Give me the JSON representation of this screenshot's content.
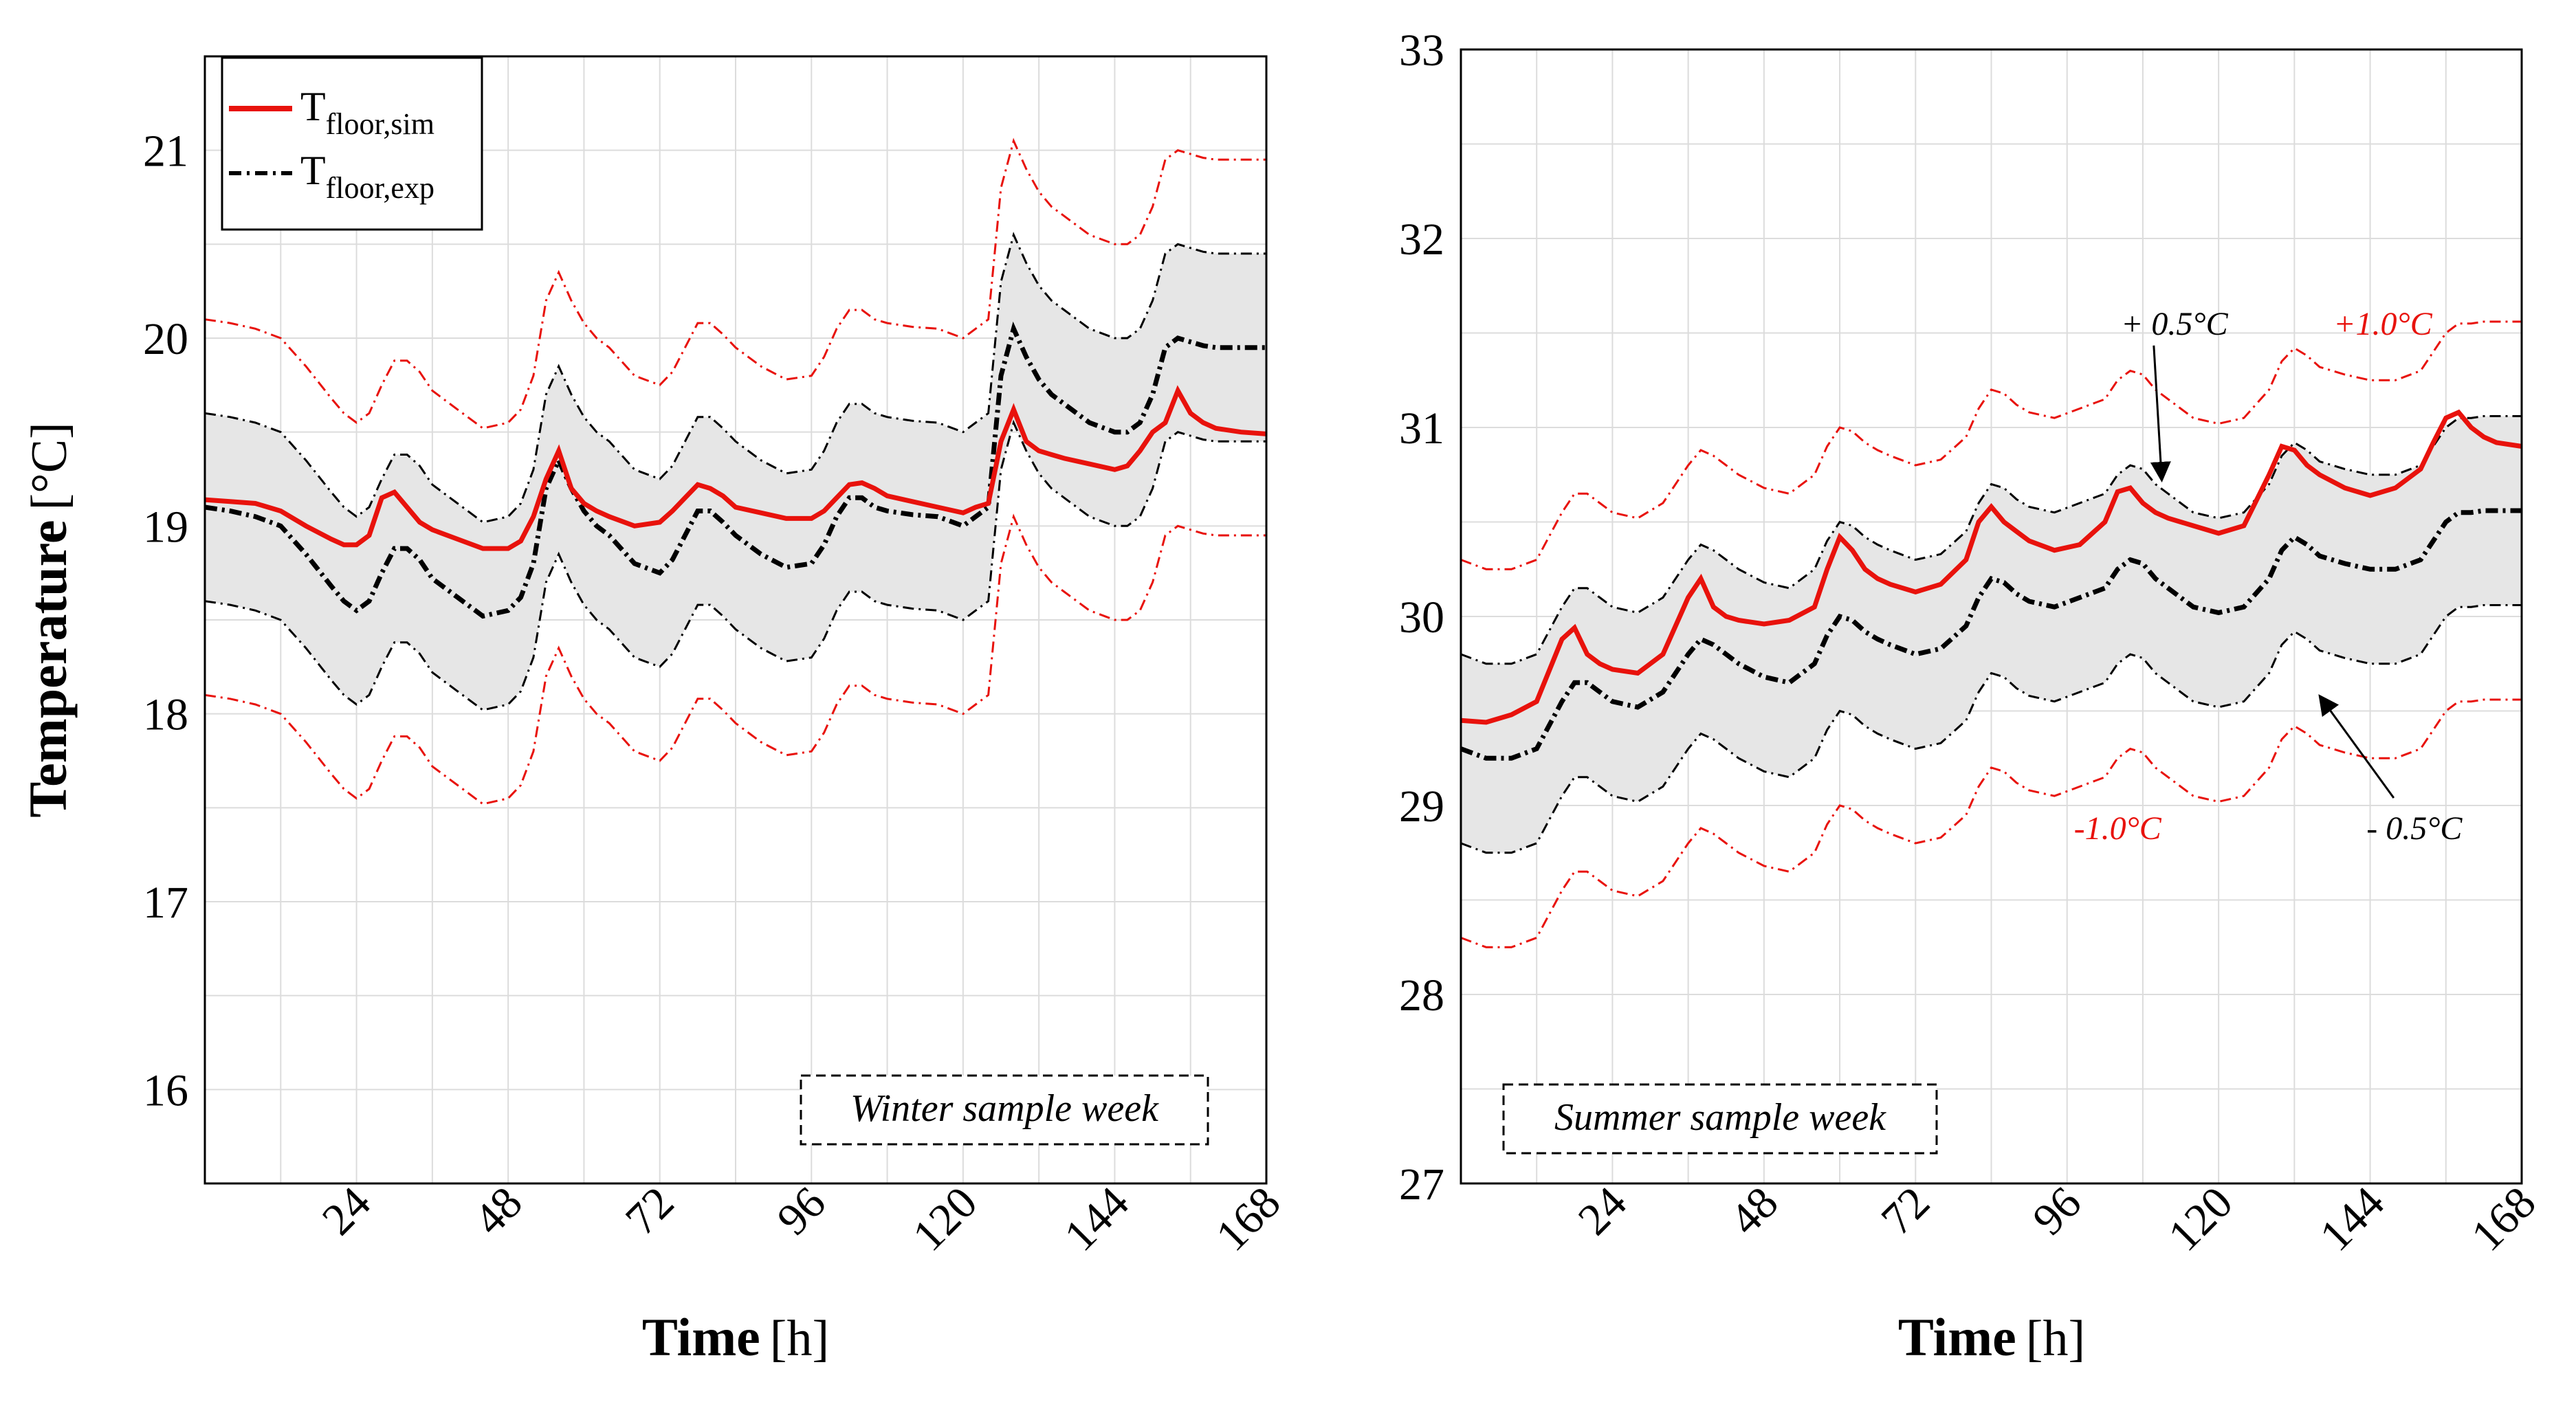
{
  "colors": {
    "sim": "#e8120c",
    "exp": "#000000",
    "band_fill": "#e6e6e6",
    "grid": "#dcdcdc"
  },
  "chart_data": [
    {
      "type": "line",
      "panel": "left",
      "box_label": "Winter sample week",
      "xlabel_main": "Time",
      "xlabel_unit": "[h]",
      "ylabel_main": "Temperature",
      "ylabel_unit": "[°C]",
      "xlim": [
        0,
        168
      ],
      "ylim": [
        15.5,
        21.5
      ],
      "xticks": [
        24,
        48,
        72,
        96,
        120,
        144,
        168
      ],
      "yticks": [
        16,
        17,
        18,
        19,
        20,
        21
      ],
      "grid": true,
      "legend": {
        "position": "top-left",
        "entries": [
          {
            "main": "T",
            "sub": "floor,sim",
            "style": "solid",
            "color": "#e8120c"
          },
          {
            "main": "T",
            "sub": "floor,exp",
            "style": "dash-dot",
            "color": "#000000"
          }
        ]
      },
      "x": [
        0,
        4,
        8,
        12,
        16,
        20,
        22,
        24,
        26,
        28,
        30,
        32,
        34,
        36,
        40,
        44,
        48,
        50,
        52,
        54,
        56,
        58,
        60,
        62,
        64,
        68,
        72,
        74,
        76,
        78,
        80,
        82,
        84,
        88,
        92,
        96,
        98,
        100,
        102,
        104,
        106,
        108,
        112,
        116,
        120,
        122,
        124,
        126,
        128,
        130,
        132,
        134,
        136,
        140,
        144,
        146,
        148,
        150,
        152,
        154,
        156,
        158,
        160,
        164,
        168
      ],
      "series": [
        {
          "name": "T_floor,sim",
          "role": "sim",
          "values": [
            19.14,
            19.13,
            19.12,
            19.08,
            19.0,
            18.93,
            18.9,
            18.9,
            18.95,
            19.15,
            19.18,
            19.1,
            19.02,
            18.98,
            18.93,
            18.88,
            18.88,
            18.92,
            19.05,
            19.25,
            19.4,
            19.2,
            19.12,
            19.08,
            19.05,
            19.0,
            19.02,
            19.08,
            19.15,
            19.22,
            19.2,
            19.16,
            19.1,
            19.07,
            19.04,
            19.04,
            19.08,
            19.15,
            19.22,
            19.23,
            19.2,
            19.16,
            19.13,
            19.1,
            19.07,
            19.1,
            19.12,
            19.45,
            19.62,
            19.45,
            19.4,
            19.38,
            19.36,
            19.33,
            19.3,
            19.32,
            19.4,
            19.5,
            19.55,
            19.72,
            19.6,
            19.55,
            19.52,
            19.5,
            19.49
          ]
        },
        {
          "name": "T_floor,exp",
          "role": "exp",
          "values": [
            19.1,
            19.08,
            19.05,
            19.0,
            18.85,
            18.68,
            18.6,
            18.55,
            18.6,
            18.75,
            18.88,
            18.88,
            18.82,
            18.72,
            18.62,
            18.52,
            18.55,
            18.62,
            18.8,
            19.2,
            19.35,
            19.2,
            19.08,
            19.0,
            18.95,
            18.8,
            18.75,
            18.82,
            18.95,
            19.08,
            19.08,
            19.02,
            18.95,
            18.85,
            18.78,
            18.8,
            18.9,
            19.05,
            19.15,
            19.15,
            19.1,
            19.08,
            19.06,
            19.05,
            19.0,
            19.05,
            19.1,
            19.8,
            20.05,
            19.9,
            19.78,
            19.7,
            19.65,
            19.55,
            19.5,
            19.5,
            19.55,
            19.7,
            19.95,
            20.0,
            19.98,
            19.96,
            19.95,
            19.95,
            19.95
          ]
        }
      ],
      "bands": [
        {
          "offset": 0.5,
          "color": "#000000",
          "filled": true
        },
        {
          "offset": 1.0,
          "color": "#e8120c",
          "filled": false
        }
      ]
    },
    {
      "type": "line",
      "panel": "right",
      "box_label": "Summer sample week",
      "xlabel_main": "Time",
      "xlabel_unit": "[h]",
      "xlim": [
        0,
        168
      ],
      "ylim": [
        27,
        33
      ],
      "xticks": [
        24,
        48,
        72,
        96,
        120,
        144,
        168
      ],
      "yticks": [
        27,
        28,
        29,
        30,
        31,
        32,
        33
      ],
      "grid": true,
      "annotations": [
        {
          "text": "+ 0.5°C",
          "color": "#000000",
          "x": 113,
          "y": 31.55,
          "arrow_to": [
            111,
            30.72
          ]
        },
        {
          "text": "+1.0°C",
          "color": "#e8120c",
          "x": 146,
          "y": 31.55
        },
        {
          "text": "-1.0°C",
          "color": "#e8120c",
          "x": 104,
          "y": 28.88
        },
        {
          "text": "- 0.5°C",
          "color": "#000000",
          "x": 151,
          "y": 28.88,
          "arrow_to": [
            136,
            29.58
          ]
        }
      ],
      "x": [
        0,
        4,
        8,
        12,
        16,
        18,
        20,
        22,
        24,
        28,
        32,
        36,
        38,
        40,
        42,
        44,
        48,
        52,
        56,
        58,
        60,
        62,
        64,
        66,
        68,
        72,
        76,
        80,
        82,
        84,
        86,
        88,
        90,
        94,
        98,
        102,
        104,
        106,
        108,
        110,
        112,
        114,
        116,
        120,
        124,
        128,
        130,
        132,
        134,
        136,
        140,
        144,
        148,
        152,
        154,
        156,
        158,
        160,
        162,
        164,
        168
      ],
      "series": [
        {
          "name": "T_floor,sim",
          "role": "sim",
          "values": [
            29.45,
            29.44,
            29.48,
            29.55,
            29.88,
            29.94,
            29.8,
            29.75,
            29.72,
            29.7,
            29.8,
            30.1,
            30.2,
            30.05,
            30.0,
            29.98,
            29.96,
            29.98,
            30.05,
            30.25,
            30.42,
            30.35,
            30.25,
            30.2,
            30.17,
            30.13,
            30.17,
            30.3,
            30.5,
            30.58,
            30.5,
            30.45,
            30.4,
            30.35,
            30.38,
            30.5,
            30.66,
            30.68,
            30.6,
            30.55,
            30.52,
            30.5,
            30.48,
            30.44,
            30.48,
            30.75,
            30.9,
            30.88,
            30.8,
            30.75,
            30.68,
            30.64,
            30.68,
            30.78,
            30.92,
            31.05,
            31.08,
            31.0,
            30.95,
            30.92,
            30.9
          ]
        },
        {
          "name": "T_floor,exp",
          "role": "exp",
          "values": [
            29.3,
            29.25,
            29.25,
            29.3,
            29.55,
            29.65,
            29.65,
            29.6,
            29.55,
            29.52,
            29.6,
            29.8,
            29.88,
            29.85,
            29.8,
            29.75,
            29.68,
            29.65,
            29.75,
            29.9,
            30.0,
            29.98,
            29.92,
            29.88,
            29.85,
            29.8,
            29.83,
            29.95,
            30.1,
            30.2,
            30.18,
            30.12,
            30.08,
            30.05,
            30.1,
            30.15,
            30.25,
            30.3,
            30.28,
            30.2,
            30.15,
            30.1,
            30.05,
            30.02,
            30.05,
            30.2,
            30.35,
            30.42,
            30.38,
            30.32,
            30.28,
            30.25,
            30.25,
            30.3,
            30.4,
            30.5,
            30.55,
            30.55,
            30.56,
            30.56,
            30.56
          ]
        }
      ],
      "bands": [
        {
          "offset": 0.5,
          "color": "#000000",
          "filled": true
        },
        {
          "offset": 1.0,
          "color": "#e8120c",
          "filled": false
        }
      ]
    }
  ]
}
